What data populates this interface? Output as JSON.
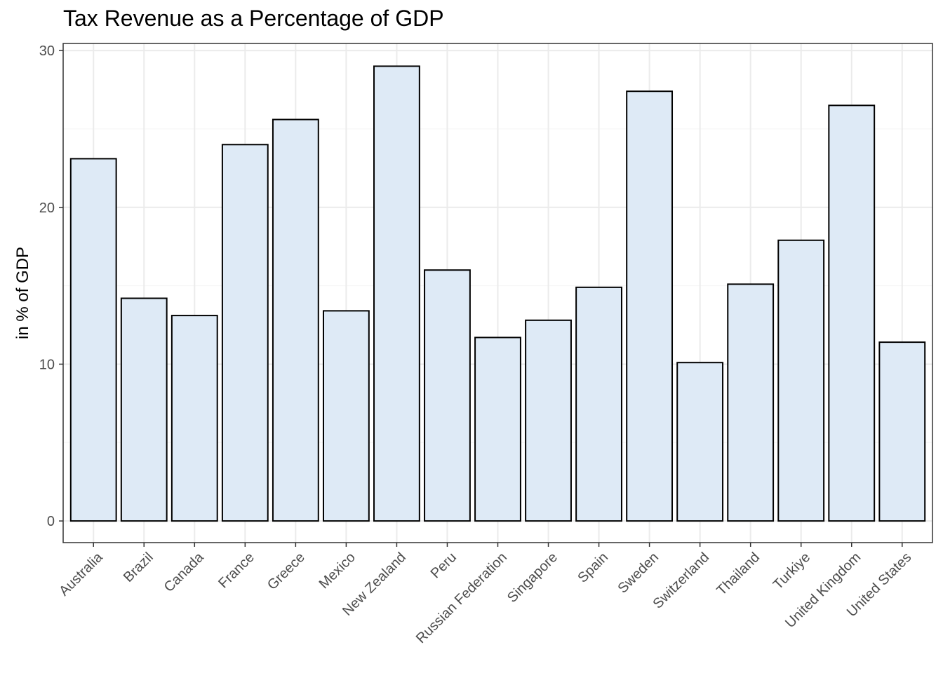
{
  "chart_data": {
    "type": "bar",
    "title": "Tax Revenue as a Percentage of GDP",
    "xlabel": "",
    "ylabel": "in % of GDP",
    "categories": [
      "Australia",
      "Brazil",
      "Canada",
      "France",
      "Greece",
      "Mexico",
      "New Zealand",
      "Peru",
      "Russian Federation",
      "Singapore",
      "Spain",
      "Sweden",
      "Switzerland",
      "Thailand",
      "Turkiye",
      "United Kingdom",
      "United States"
    ],
    "values": [
      23.1,
      14.2,
      13.1,
      24.0,
      25.6,
      13.4,
      29.0,
      16.0,
      11.7,
      12.8,
      14.9,
      27.4,
      10.1,
      15.1,
      17.9,
      26.5,
      11.4
    ],
    "yticks": [
      "0",
      "10",
      "20",
      "30"
    ],
    "ylim": [
      -1.38,
      30.45
    ],
    "grid": true,
    "colors": {
      "bar_fill": "#deeaf6",
      "bar_stroke": "#000000",
      "grid_major": "#ebebeb",
      "grid_minor": "#f5f5f5",
      "panel_border": "#333333"
    }
  }
}
